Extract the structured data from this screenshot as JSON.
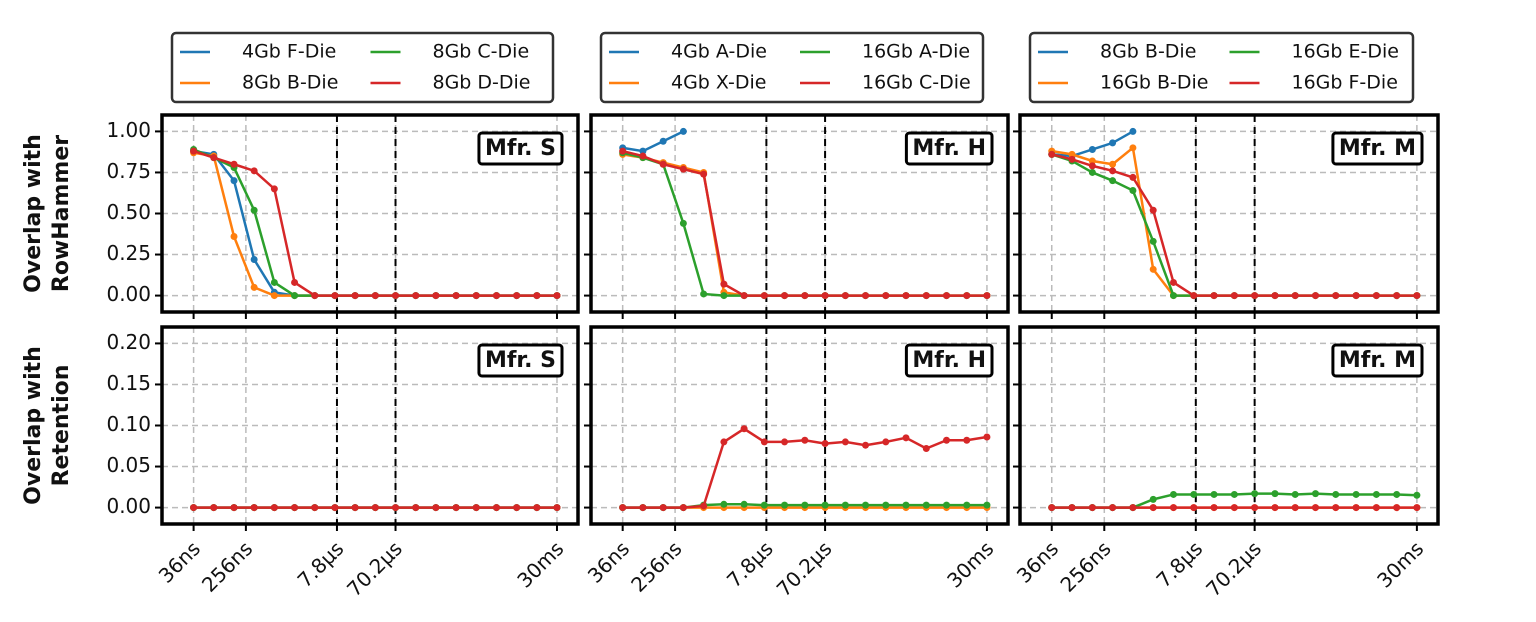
{
  "chart_data": [
    {
      "type": "line",
      "xscale": "log",
      "grid": true,
      "legend": "upper center outside",
      "annotation": "Mfr. S",
      "ylabel": [
        "Overlap with",
        "RowHammer"
      ],
      "xlim": [
        1.1e-08,
        0.066
      ],
      "ylim": [
        -0.1,
        1.1
      ],
      "xticks": [
        3.6e-08,
        2.56e-07,
        7.8e-06,
        7.02e-05,
        0.03
      ],
      "yticks": [
        {
          "value": 0,
          "label": "0.00"
        },
        {
          "value": 0.25,
          "label": "0.25"
        },
        {
          "value": 0.5,
          "label": "0.50"
        },
        {
          "value": 0.75,
          "label": "0.75"
        },
        {
          "value": 1,
          "label": "1.00"
        }
      ],
      "vlines": [
        7.8e-06,
        7.02e-05
      ],
      "x": [
        3.6e-08,
        7.67e-08,
        1.64e-07,
        3.49e-07,
        7.45e-07,
        1.59e-06,
        3.39e-06,
        7.23e-06,
        1.54e-05,
        3.29e-05,
        7.02e-05,
        0.00015,
        0.000319,
        0.000681,
        0.00145,
        0.0031,
        0.00661,
        0.0141,
        0.03
      ],
      "series": [
        {
          "name": "4Gb F-Die",
          "color": "#1f77b4",
          "values": [
            0.88,
            0.86,
            0.7,
            0.22,
            0.02,
            0,
            0,
            0,
            0,
            0,
            0,
            0,
            0,
            0,
            0,
            0,
            0,
            0,
            0
          ]
        },
        {
          "name": "8Gb B-Die",
          "color": "#ff7f0e",
          "values": [
            0.87,
            0.85,
            0.36,
            0.05,
            0,
            0,
            0,
            0,
            0,
            0,
            0,
            0,
            0,
            0,
            0,
            0,
            0,
            0,
            0
          ]
        },
        {
          "name": "8Gb C-Die",
          "color": "#2ca02c",
          "values": [
            0.89,
            0.84,
            0.78,
            0.52,
            0.08,
            0,
            0,
            0,
            0,
            0,
            0,
            0,
            0,
            0,
            0,
            0,
            0,
            0,
            0
          ]
        },
        {
          "name": "8Gb D-Die",
          "color": "#d62728",
          "values": [
            0.88,
            0.84,
            0.8,
            0.76,
            0.65,
            0.08,
            0,
            0,
            0,
            0,
            0,
            0,
            0,
            0,
            0,
            0,
            0,
            0,
            0
          ]
        }
      ]
    },
    {
      "type": "line",
      "xscale": "log",
      "grid": true,
      "legend": "upper center outside",
      "annotation": "Mfr. H",
      "xlim": [
        1.1e-08,
        0.066
      ],
      "ylim": [
        -0.1,
        1.1
      ],
      "xticks": [
        3.6e-08,
        2.56e-07,
        7.8e-06,
        7.02e-05,
        0.03
      ],
      "yticks": [
        0,
        0.25,
        0.5,
        0.75,
        1
      ],
      "vlines": [
        7.8e-06,
        7.02e-05
      ],
      "x": [
        3.6e-08,
        7.67e-08,
        1.64e-07,
        3.49e-07,
        7.45e-07,
        1.59e-06,
        3.39e-06,
        7.23e-06,
        1.54e-05,
        3.29e-05,
        7.02e-05,
        0.00015,
        0.000319,
        0.000681,
        0.00145,
        0.0031,
        0.00661,
        0.0141,
        0.03
      ],
      "series": [
        {
          "name": "4Gb A-Die",
          "color": "#1f77b4",
          "values": [
            0.9,
            0.88,
            0.94,
            1.0,
            null,
            null,
            null,
            null,
            null,
            null,
            null,
            null,
            null,
            null,
            null,
            null,
            null,
            null,
            null
          ]
        },
        {
          "name": "4Gb X-Die",
          "color": "#ff7f0e",
          "values": [
            0.86,
            0.84,
            0.81,
            0.78,
            0.75,
            0.02,
            0,
            0,
            0,
            0,
            0,
            0,
            0,
            0,
            0,
            0,
            0,
            0,
            0
          ]
        },
        {
          "name": "16Gb A-Die",
          "color": "#2ca02c",
          "values": [
            0.87,
            0.84,
            0.8,
            0.44,
            0.01,
            0,
            0,
            0,
            0,
            0,
            0,
            0,
            0,
            0,
            0,
            0,
            0,
            0,
            0
          ]
        },
        {
          "name": "16Gb C-Die",
          "color": "#d62728",
          "values": [
            0.88,
            0.85,
            0.8,
            0.77,
            0.74,
            0.07,
            0,
            0,
            0,
            0,
            0,
            0,
            0,
            0,
            0,
            0,
            0,
            0,
            0
          ]
        }
      ]
    },
    {
      "type": "line",
      "xscale": "log",
      "grid": true,
      "legend": "upper center outside",
      "annotation": "Mfr. M",
      "xlim": [
        1.1e-08,
        0.066
      ],
      "ylim": [
        -0.1,
        1.1
      ],
      "xticks": [
        3.6e-08,
        2.56e-07,
        7.8e-06,
        7.02e-05,
        0.03
      ],
      "yticks": [
        0,
        0.25,
        0.5,
        0.75,
        1
      ],
      "vlines": [
        7.8e-06,
        7.02e-05
      ],
      "x": [
        3.6e-08,
        7.67e-08,
        1.64e-07,
        3.49e-07,
        7.45e-07,
        1.59e-06,
        3.39e-06,
        7.23e-06,
        1.54e-05,
        3.29e-05,
        7.02e-05,
        0.00015,
        0.000319,
        0.000681,
        0.00145,
        0.0031,
        0.00661,
        0.0141,
        0.03
      ],
      "series": [
        {
          "name": "8Gb B-Die",
          "color": "#1f77b4",
          "values": [
            0.86,
            0.85,
            0.89,
            0.93,
            1.0,
            null,
            null,
            null,
            null,
            null,
            null,
            null,
            null,
            null,
            null,
            null,
            null,
            null,
            null
          ]
        },
        {
          "name": "16Gb B-Die",
          "color": "#ff7f0e",
          "values": [
            0.88,
            0.86,
            0.82,
            0.8,
            0.9,
            0.16,
            0,
            0,
            0,
            0,
            0,
            0,
            0,
            0,
            0,
            0,
            0,
            0,
            0
          ]
        },
        {
          "name": "16Gb E-Die",
          "color": "#2ca02c",
          "values": [
            0.86,
            0.82,
            0.75,
            0.7,
            0.64,
            0.33,
            0,
            0,
            0,
            0,
            0,
            0,
            0,
            0,
            0,
            0,
            0,
            0,
            0
          ]
        },
        {
          "name": "16Gb F-Die",
          "color": "#d62728",
          "values": [
            0.86,
            0.83,
            0.79,
            0.76,
            0.72,
            0.52,
            0.08,
            0,
            0,
            0,
            0,
            0,
            0,
            0,
            0,
            0,
            0,
            0,
            0
          ]
        }
      ]
    },
    {
      "type": "line",
      "xscale": "log",
      "grid": true,
      "annotation": "Mfr. S",
      "ylabel": [
        "Overlap with",
        "Retention"
      ],
      "xlim": [
        1.1e-08,
        0.066
      ],
      "ylim": [
        -0.02,
        0.22
      ],
      "xticks": [
        {
          "value": 3.6e-08,
          "label": "36ns"
        },
        {
          "value": 2.56e-07,
          "label": "256ns"
        },
        {
          "value": 7.8e-06,
          "label": "7.8µs"
        },
        {
          "value": 7.02e-05,
          "label": "70.2µs"
        },
        {
          "value": 0.03,
          "label": "30ms"
        }
      ],
      "yticks": [
        {
          "value": 0,
          "label": "0.00"
        },
        {
          "value": 0.05,
          "label": "0.05"
        },
        {
          "value": 0.1,
          "label": "0.10"
        },
        {
          "value": 0.15,
          "label": "0.15"
        },
        {
          "value": 0.2,
          "label": "0.20"
        }
      ],
      "vlines": [
        7.8e-06,
        7.02e-05
      ],
      "x": [
        3.6e-08,
        7.67e-08,
        1.64e-07,
        3.49e-07,
        7.45e-07,
        1.59e-06,
        3.39e-06,
        7.23e-06,
        1.54e-05,
        3.29e-05,
        7.02e-05,
        0.00015,
        0.000319,
        0.000681,
        0.00145,
        0.0031,
        0.00661,
        0.0141,
        0.03
      ],
      "series": [
        {
          "name": "4Gb F-Die",
          "color": "#1f77b4",
          "values": [
            0,
            0,
            0,
            0,
            0,
            0,
            0,
            0,
            0,
            0,
            0,
            0,
            0,
            0,
            0,
            0,
            0,
            0,
            0
          ]
        },
        {
          "name": "8Gb B-Die",
          "color": "#ff7f0e",
          "values": [
            0,
            0,
            0,
            0,
            0,
            0,
            0,
            0,
            0,
            0,
            0,
            0,
            0,
            0,
            0,
            0,
            0,
            0,
            0
          ]
        },
        {
          "name": "8Gb C-Die",
          "color": "#2ca02c",
          "values": [
            0,
            0,
            0,
            0,
            0,
            0,
            0,
            0,
            0,
            0,
            0,
            0,
            0,
            0,
            0,
            0,
            0,
            0,
            0
          ]
        },
        {
          "name": "8Gb D-Die",
          "color": "#d62728",
          "values": [
            0,
            0,
            0,
            0,
            0,
            0,
            0,
            0,
            0,
            0,
            0,
            0,
            0,
            0,
            0,
            0,
            0,
            0,
            0
          ]
        }
      ]
    },
    {
      "type": "line",
      "xscale": "log",
      "grid": true,
      "annotation": "Mfr. H",
      "xlim": [
        1.1e-08,
        0.066
      ],
      "ylim": [
        -0.02,
        0.22
      ],
      "xticks": [
        {
          "value": 3.6e-08,
          "label": "36ns"
        },
        {
          "value": 2.56e-07,
          "label": "256ns"
        },
        {
          "value": 7.8e-06,
          "label": "7.8µs"
        },
        {
          "value": 7.02e-05,
          "label": "70.2µs"
        },
        {
          "value": 0.03,
          "label": "30ms"
        }
      ],
      "yticks": [
        0,
        0.05,
        0.1,
        0.15,
        0.2
      ],
      "vlines": [
        7.8e-06,
        7.02e-05
      ],
      "x": [
        3.6e-08,
        7.67e-08,
        1.64e-07,
        3.49e-07,
        7.45e-07,
        1.59e-06,
        3.39e-06,
        7.23e-06,
        1.54e-05,
        3.29e-05,
        7.02e-05,
        0.00015,
        0.000319,
        0.000681,
        0.00145,
        0.0031,
        0.00661,
        0.0141,
        0.03
      ],
      "series": [
        {
          "name": "4Gb A-Die",
          "color": "#1f77b4",
          "values": [
            0,
            0,
            0,
            0,
            null,
            null,
            null,
            null,
            null,
            null,
            null,
            null,
            null,
            null,
            null,
            null,
            null,
            null,
            null
          ]
        },
        {
          "name": "4Gb X-Die",
          "color": "#ff7f0e",
          "values": [
            0,
            0,
            0,
            0,
            0,
            0,
            0,
            0,
            0,
            0,
            0,
            0,
            0,
            0,
            0,
            0,
            0,
            0,
            0
          ]
        },
        {
          "name": "16Gb A-Die",
          "color": "#2ca02c",
          "values": [
            0,
            0,
            0,
            0,
            0.003,
            0.004,
            0.004,
            0.003,
            0.003,
            0.003,
            0.003,
            0.003,
            0.003,
            0.003,
            0.003,
            0.003,
            0.003,
            0.003,
            0.003
          ]
        },
        {
          "name": "16Gb C-Die",
          "color": "#d62728",
          "values": [
            0,
            0,
            0,
            0,
            0.002,
            0.08,
            0.096,
            0.08,
            0.08,
            0.082,
            0.078,
            0.08,
            0.076,
            0.08,
            0.085,
            0.072,
            0.082,
            0.082,
            0.086
          ]
        }
      ]
    },
    {
      "type": "line",
      "xscale": "log",
      "grid": true,
      "annotation": "Mfr. M",
      "xlim": [
        1.1e-08,
        0.066
      ],
      "ylim": [
        -0.02,
        0.22
      ],
      "xticks": [
        {
          "value": 3.6e-08,
          "label": "36ns"
        },
        {
          "value": 2.56e-07,
          "label": "256ns"
        },
        {
          "value": 7.8e-06,
          "label": "7.8µs"
        },
        {
          "value": 7.02e-05,
          "label": "70.2µs"
        },
        {
          "value": 0.03,
          "label": "30ms"
        }
      ],
      "yticks": [
        0,
        0.05,
        0.1,
        0.15,
        0.2
      ],
      "vlines": [
        7.8e-06,
        7.02e-05
      ],
      "x": [
        3.6e-08,
        7.67e-08,
        1.64e-07,
        3.49e-07,
        7.45e-07,
        1.59e-06,
        3.39e-06,
        7.23e-06,
        1.54e-05,
        3.29e-05,
        7.02e-05,
        0.00015,
        0.000319,
        0.000681,
        0.00145,
        0.0031,
        0.00661,
        0.0141,
        0.03
      ],
      "series": [
        {
          "name": "8Gb B-Die",
          "color": "#1f77b4",
          "values": [
            0,
            0,
            0,
            0,
            0,
            null,
            null,
            null,
            null,
            null,
            null,
            null,
            null,
            null,
            null,
            null,
            null,
            null,
            null
          ]
        },
        {
          "name": "16Gb B-Die",
          "color": "#ff7f0e",
          "values": [
            0,
            0,
            0,
            0,
            0,
            0,
            0,
            0,
            0,
            0,
            0,
            0,
            0,
            0,
            0,
            0,
            0,
            0,
            0
          ]
        },
        {
          "name": "16Gb E-Die",
          "color": "#2ca02c",
          "values": [
            0,
            0,
            0,
            0,
            0,
            0.01,
            0.016,
            0.016,
            0.016,
            0.016,
            0.017,
            0.017,
            0.016,
            0.017,
            0.016,
            0.016,
            0.016,
            0.016,
            0.015
          ]
        },
        {
          "name": "16Gb F-Die",
          "color": "#d62728",
          "values": [
            0,
            0,
            0,
            0,
            0,
            0,
            0,
            0,
            0,
            0,
            0,
            0,
            0,
            0,
            0,
            0,
            0,
            0,
            0
          ]
        }
      ]
    }
  ]
}
